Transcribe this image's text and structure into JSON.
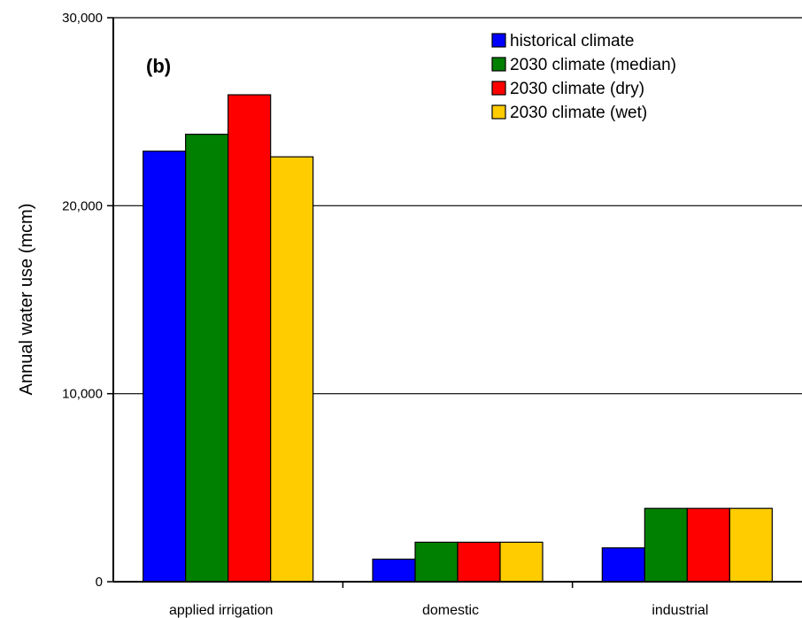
{
  "chart_data": {
    "type": "bar",
    "panel_label": "(b)",
    "title": "",
    "xlabel": "",
    "ylabel": "Annual water use (mcm)",
    "ylim": [
      0,
      30000
    ],
    "yticks": [
      0,
      10000,
      20000,
      30000
    ],
    "ytick_labels": [
      "0",
      "10,000",
      "20,000",
      "30,000"
    ],
    "grid": "horizontal",
    "legend_position": "top-right",
    "categories": [
      "applied irrigation",
      "domestic",
      "industrial"
    ],
    "series": [
      {
        "name": "historical climate",
        "color": "#0000ff",
        "values": [
          22900,
          1200,
          1800
        ]
      },
      {
        "name": "2030 climate (median)",
        "color": "#008000",
        "values": [
          23800,
          2100,
          3900
        ]
      },
      {
        "name": "2030 climate (dry)",
        "color": "#ff0000",
        "values": [
          25900,
          2100,
          3900
        ]
      },
      {
        "name": "2030 climate (wet)",
        "color": "#ffcc00",
        "values": [
          22600,
          2100,
          3900
        ]
      }
    ]
  }
}
